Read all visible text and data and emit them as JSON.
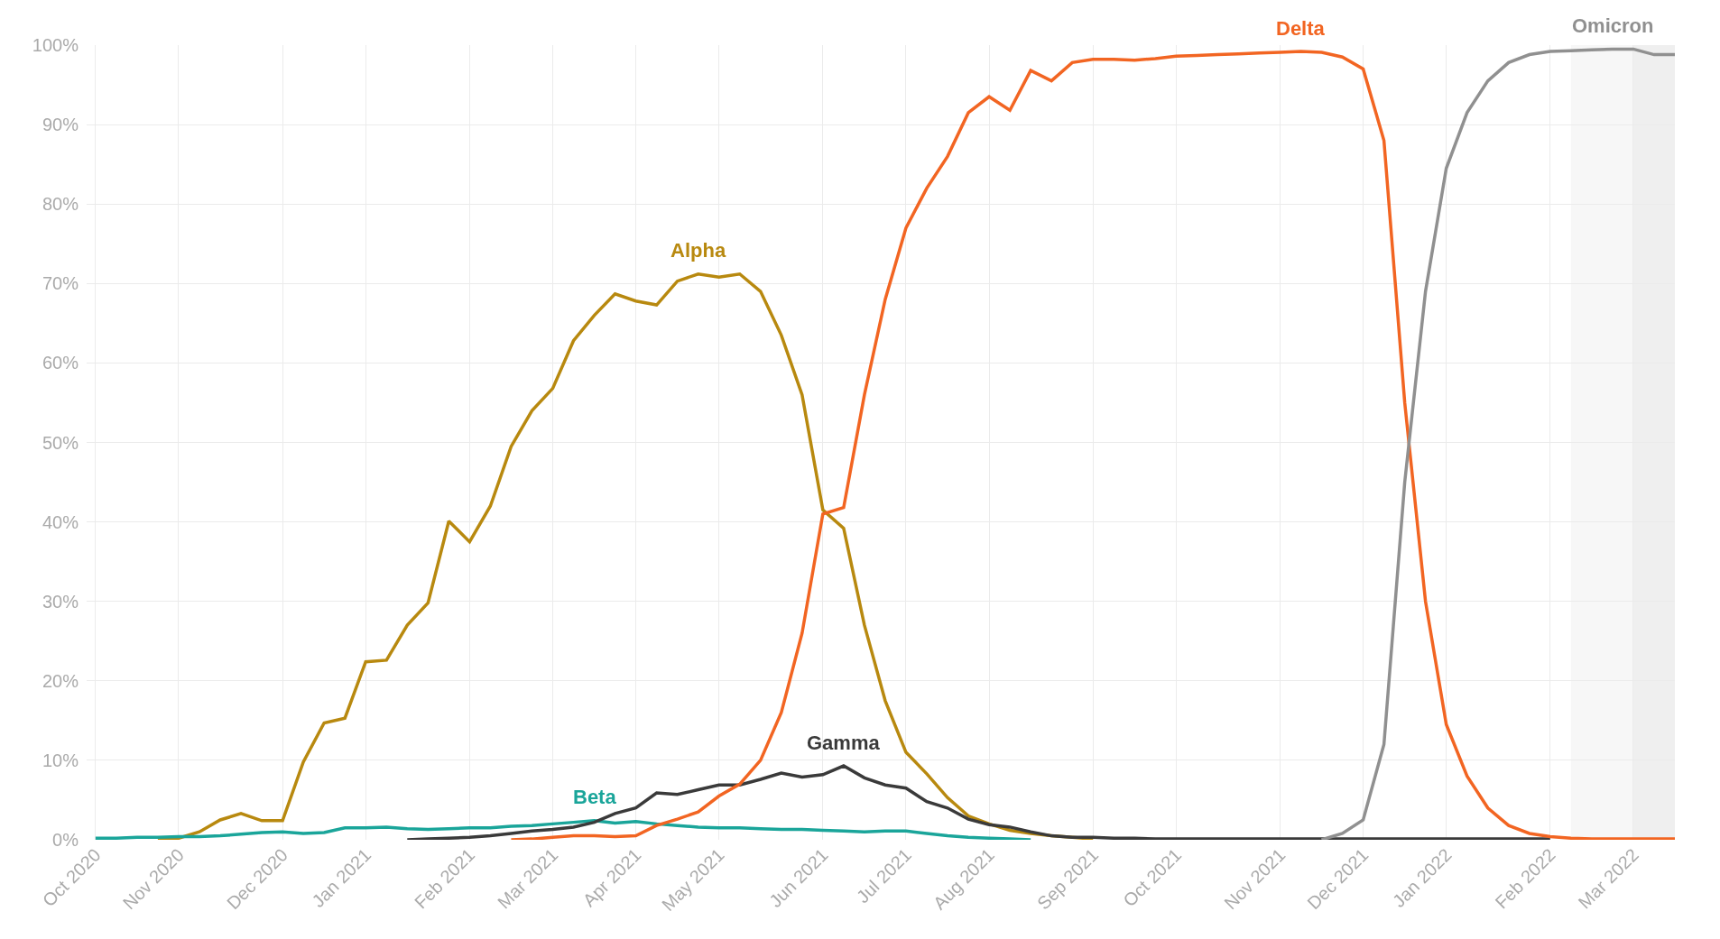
{
  "chart_data": {
    "type": "line",
    "x": [
      "2020-10-04",
      "2020-10-11",
      "2020-10-18",
      "2020-10-25",
      "2020-11-01",
      "2020-11-08",
      "2020-11-15",
      "2020-11-22",
      "2020-11-29",
      "2020-12-06",
      "2020-12-13",
      "2020-12-20",
      "2020-12-27",
      "2021-01-03",
      "2021-01-10",
      "2021-01-17",
      "2021-01-24",
      "2021-01-31",
      "2021-02-07",
      "2021-02-14",
      "2021-02-21",
      "2021-02-28",
      "2021-03-07",
      "2021-03-14",
      "2021-03-21",
      "2021-03-28",
      "2021-04-04",
      "2021-04-11",
      "2021-04-18",
      "2021-04-25",
      "2021-05-02",
      "2021-05-09",
      "2021-05-16",
      "2021-05-23",
      "2021-05-30",
      "2021-06-06",
      "2021-06-13",
      "2021-06-20",
      "2021-06-27",
      "2021-07-04",
      "2021-07-11",
      "2021-07-18",
      "2021-07-25",
      "2021-08-01",
      "2021-08-08",
      "2021-08-15",
      "2021-08-22",
      "2021-08-29",
      "2021-09-05",
      "2021-09-12",
      "2021-09-19",
      "2021-09-26",
      "2021-10-03",
      "2021-10-10",
      "2021-10-17",
      "2021-10-24",
      "2021-10-31",
      "2021-11-07",
      "2021-11-14",
      "2021-11-21",
      "2021-11-28",
      "2021-12-05",
      "2021-12-12",
      "2021-12-19",
      "2021-12-26",
      "2022-01-02",
      "2022-01-09",
      "2022-01-16",
      "2022-01-23",
      "2022-01-30",
      "2022-02-06",
      "2022-02-13",
      "2022-02-20",
      "2022-02-27",
      "2022-03-06",
      "2022-03-13",
      "2022-03-20"
    ],
    "series": [
      {
        "name": "Alpha",
        "color": "#b8890f",
        "values": [
          null,
          null,
          null,
          0,
          0.2,
          1,
          2.5,
          3.3,
          2.4,
          2.4,
          9.8,
          14.7,
          15.3,
          22.4,
          22.6,
          27,
          29.8,
          40.1,
          37.5,
          42,
          49.5,
          54,
          56.8,
          62.8,
          66,
          68.7,
          67.8,
          67.3,
          70.3,
          71.2,
          70.8,
          71.2,
          69,
          63.5,
          56,
          41.5,
          39.2,
          27,
          17.5,
          11,
          8.3,
          5.3,
          3,
          2,
          1.2,
          0.8,
          0.5,
          0.3,
          0.1,
          null,
          null,
          null,
          null,
          null,
          null,
          null,
          null,
          null,
          null,
          null,
          null,
          null,
          null,
          null,
          null,
          null,
          null,
          null,
          null,
          null,
          null,
          null,
          null,
          null,
          null,
          null,
          null
        ]
      },
      {
        "name": "Beta",
        "color": "#1aa59a",
        "values": [
          0.2,
          0.2,
          0.3,
          0.3,
          0.4,
          0.4,
          0.5,
          0.7,
          0.9,
          1,
          0.8,
          0.9,
          1.5,
          1.5,
          1.6,
          1.4,
          1.3,
          1.4,
          1.5,
          1.5,
          1.7,
          1.8,
          2,
          2.2,
          2.4,
          2.1,
          2.3,
          2,
          1.8,
          1.6,
          1.5,
          1.5,
          1.4,
          1.3,
          1.3,
          1.2,
          1.1,
          1,
          1.1,
          1.1,
          0.8,
          0.5,
          0.3,
          0.2,
          0.1,
          0,
          null,
          null,
          null,
          null,
          null,
          null,
          null,
          null,
          null,
          null,
          null,
          null,
          null,
          null,
          null,
          null,
          null,
          null,
          null,
          null,
          null,
          null,
          null,
          null,
          null,
          null,
          null,
          null,
          null,
          null,
          null
        ]
      },
      {
        "name": "Gamma",
        "color": "#3a3a3a",
        "values": [
          null,
          null,
          null,
          null,
          null,
          null,
          null,
          null,
          null,
          null,
          null,
          null,
          null,
          null,
          null,
          0,
          0.1,
          0.2,
          0.3,
          0.5,
          0.8,
          1.1,
          1.3,
          1.6,
          2.2,
          3.3,
          4,
          5.9,
          5.7,
          6.3,
          6.9,
          6.9,
          7.6,
          8.4,
          7.9,
          8.2,
          9.3,
          7.8,
          6.9,
          6.5,
          4.8,
          4,
          2.6,
          1.9,
          1.6,
          1,
          0.5,
          0.3,
          0.3,
          0.2,
          0.2,
          0.1,
          0.1,
          0.1,
          0.1,
          0.1,
          0.1,
          0.1,
          0.1,
          0.1,
          0.1,
          0.1,
          0.1,
          0.1,
          0.1,
          0.1,
          0.1,
          0.1,
          0.1,
          0.1,
          0.1,
          null,
          null,
          null,
          null,
          null,
          null
        ]
      },
      {
        "name": "Delta",
        "color": "#f26522",
        "values": [
          null,
          null,
          null,
          null,
          null,
          null,
          null,
          null,
          null,
          null,
          null,
          null,
          null,
          null,
          null,
          null,
          null,
          null,
          null,
          null,
          0,
          0.1,
          0.3,
          0.5,
          0.5,
          0.4,
          0.5,
          1.8,
          2.6,
          3.5,
          5.5,
          7,
          10,
          16,
          26,
          41,
          41.8,
          56,
          68,
          77,
          82,
          86,
          91.5,
          93.5,
          91.8,
          96.8,
          95.5,
          97.8,
          98.2,
          98.2,
          98.1,
          98.3,
          98.6,
          98.7,
          98.8,
          98.9,
          99,
          99.1,
          99.2,
          99.1,
          98.5,
          97,
          88,
          55,
          30,
          14.5,
          8,
          4,
          1.8,
          0.8,
          0.4,
          0.2,
          0.1,
          0.1,
          0.1,
          0.1,
          0.1
        ]
      },
      {
        "name": "Omicron",
        "color": "#909090",
        "values": [
          null,
          null,
          null,
          null,
          null,
          null,
          null,
          null,
          null,
          null,
          null,
          null,
          null,
          null,
          null,
          null,
          null,
          null,
          null,
          null,
          null,
          null,
          null,
          null,
          null,
          null,
          null,
          null,
          null,
          null,
          null,
          null,
          null,
          null,
          null,
          null,
          null,
          null,
          null,
          null,
          null,
          null,
          null,
          null,
          null,
          null,
          null,
          null,
          null,
          null,
          null,
          null,
          null,
          null,
          null,
          null,
          null,
          null,
          null,
          0,
          0.8,
          2.5,
          12,
          45,
          69,
          84.5,
          91.5,
          95.5,
          97.8,
          98.8,
          99.2,
          99.3,
          99.4,
          99.5,
          99.5,
          98.8,
          98.8
        ]
      }
    ],
    "xlim": [
      "2020-10-01",
      "2022-03-20"
    ],
    "xticks": [
      {
        "value": "2020-10-04",
        "label": "Oct 2020"
      },
      {
        "value": "2020-11-01",
        "label": "Nov 2020"
      },
      {
        "value": "2020-12-06",
        "label": "Dec 2020"
      },
      {
        "value": "2021-01-03",
        "label": "Jan 2021"
      },
      {
        "value": "2021-02-07",
        "label": "Feb 2021"
      },
      {
        "value": "2021-03-07",
        "label": "Mar 2021"
      },
      {
        "value": "2021-04-04",
        "label": "Apr 2021"
      },
      {
        "value": "2021-05-02",
        "label": "May 2021"
      },
      {
        "value": "2021-06-06",
        "label": "Jun 2021"
      },
      {
        "value": "2021-07-04",
        "label": "Jul 2021"
      },
      {
        "value": "2021-08-01",
        "label": "Aug 2021"
      },
      {
        "value": "2021-09-05",
        "label": "Sep 2021"
      },
      {
        "value": "2021-10-03",
        "label": "Oct 2021"
      },
      {
        "value": "2021-11-07",
        "label": "Nov 2021"
      },
      {
        "value": "2021-12-05",
        "label": "Dec 2021"
      },
      {
        "value": "2022-01-02",
        "label": "Jan 2022"
      },
      {
        "value": "2022-02-06",
        "label": "Feb 2022"
      },
      {
        "value": "2022-03-06",
        "label": "Mar 2022"
      }
    ],
    "ylim": [
      0,
      100
    ],
    "yticks": [
      {
        "value": 0,
        "label": "0%"
      },
      {
        "value": 10,
        "label": "10%"
      },
      {
        "value": 20,
        "label": "20%"
      },
      {
        "value": 30,
        "label": "30%"
      },
      {
        "value": 40,
        "label": "40%"
      },
      {
        "value": 50,
        "label": "50%"
      },
      {
        "value": 60,
        "label": "60%"
      },
      {
        "value": 70,
        "label": "70%"
      },
      {
        "value": 80,
        "label": "80%"
      },
      {
        "value": 90,
        "label": "90%"
      },
      {
        "value": 100,
        "label": "100%"
      }
    ],
    "bands": [
      {
        "axis": "x",
        "from": "2022-02-13",
        "to": "2022-03-06",
        "color": "#f7f7f7"
      },
      {
        "axis": "x",
        "from": "2022-03-06",
        "to": "2022-03-20",
        "color": "#efefef"
      }
    ],
    "grid": true,
    "legend": false,
    "marker": "none",
    "line_style": "solid"
  }
}
